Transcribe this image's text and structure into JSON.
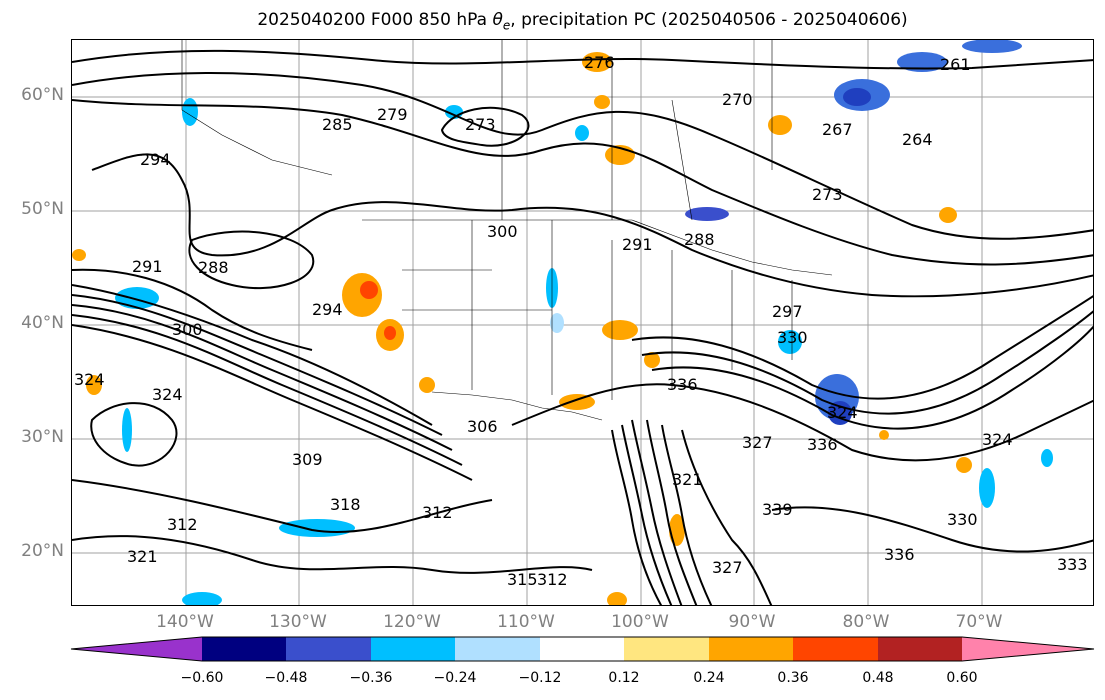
{
  "title": {
    "prefix": "2025040200 F000 850 hPa ",
    "theta_symbol": "θ",
    "theta_sub": "e",
    "suffix": ", precipitation PC (2025040506 - 2025040606)"
  },
  "map": {
    "lat_labels": [
      "60°N",
      "50°N",
      "40°N",
      "30°N",
      "20°N"
    ],
    "lon_labels": [
      "140°W",
      "130°W",
      "120°W",
      "110°W",
      "100°W",
      "90°W",
      "80°W",
      "70°W"
    ],
    "contour_labels": [
      "276",
      "279",
      "273",
      "285",
      "270",
      "261",
      "294",
      "267",
      "264",
      "273",
      "300",
      "291",
      "288",
      "291",
      "288",
      "294",
      "300",
      "297",
      "324",
      "324",
      "309",
      "306",
      "336",
      "330",
      "327",
      "324",
      "336",
      "312",
      "318",
      "312",
      "321",
      "321",
      "339",
      "330",
      "336",
      "333",
      "315",
      "312",
      "324",
      "327"
    ],
    "colors": {
      "contour": "#000000",
      "grid": "#a0a0a0",
      "label": "#808080",
      "border": "#000000"
    }
  },
  "colorbar": {
    "ticks": [
      "−0.60",
      "−0.48",
      "−0.36",
      "−0.24",
      "−0.12",
      "0.12",
      "0.24",
      "0.36",
      "0.48",
      "0.60"
    ],
    "bins": [
      "#9932cc",
      "#000080",
      "#3a4fcc",
      "#00bfff",
      "#b0e0ff",
      "#ffffff",
      "#ffe680",
      "#ffa500",
      "#ff4500",
      "#b22222",
      "#ff82ab"
    ]
  }
}
